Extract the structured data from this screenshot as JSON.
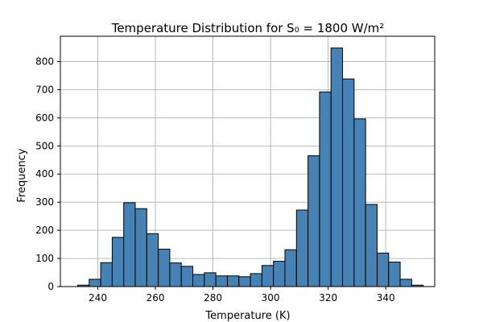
{
  "chart_data": {
    "type": "bar",
    "title": "Temperature Distribution for S₀ = 1800 W/m²",
    "xlabel": "Temperature (K)",
    "ylabel": "Frequency",
    "xlim": [
      227,
      357
    ],
    "ylim": [
      0,
      890
    ],
    "grid": true,
    "bar_color": "#4682b4",
    "edge_color": "#000000",
    "grid_color": "#b0b0b0",
    "bin_width": 4,
    "bins": [
      {
        "x0": 233,
        "x1": 237,
        "value": 5
      },
      {
        "x0": 237,
        "x1": 241,
        "value": 26
      },
      {
        "x0": 241,
        "x1": 245,
        "value": 85
      },
      {
        "x0": 245,
        "x1": 249,
        "value": 175
      },
      {
        "x0": 249,
        "x1": 253,
        "value": 298
      },
      {
        "x0": 253,
        "x1": 257,
        "value": 277
      },
      {
        "x0": 257,
        "x1": 261,
        "value": 188
      },
      {
        "x0": 261,
        "x1": 265,
        "value": 133
      },
      {
        "x0": 265,
        "x1": 269,
        "value": 84
      },
      {
        "x0": 269,
        "x1": 273,
        "value": 72
      },
      {
        "x0": 273,
        "x1": 277,
        "value": 43
      },
      {
        "x0": 277,
        "x1": 281,
        "value": 49
      },
      {
        "x0": 281,
        "x1": 285,
        "value": 38
      },
      {
        "x0": 285,
        "x1": 289,
        "value": 38
      },
      {
        "x0": 289,
        "x1": 293,
        "value": 35
      },
      {
        "x0": 293,
        "x1": 297,
        "value": 46
      },
      {
        "x0": 297,
        "x1": 301,
        "value": 75
      },
      {
        "x0": 301,
        "x1": 305,
        "value": 90
      },
      {
        "x0": 305,
        "x1": 309,
        "value": 131
      },
      {
        "x0": 309,
        "x1": 313,
        "value": 272
      },
      {
        "x0": 313,
        "x1": 317,
        "value": 465
      },
      {
        "x0": 317,
        "x1": 321,
        "value": 692
      },
      {
        "x0": 321,
        "x1": 325,
        "value": 848
      },
      {
        "x0": 325,
        "x1": 329,
        "value": 738
      },
      {
        "x0": 329,
        "x1": 333,
        "value": 596
      },
      {
        "x0": 333,
        "x1": 337,
        "value": 292
      },
      {
        "x0": 337,
        "x1": 341,
        "value": 119
      },
      {
        "x0": 341,
        "x1": 345,
        "value": 87
      },
      {
        "x0": 345,
        "x1": 349,
        "value": 26
      },
      {
        "x0": 349,
        "x1": 353,
        "value": 5
      }
    ],
    "x_ticks": [
      {
        "value": 240,
        "label": "240"
      },
      {
        "value": 260,
        "label": "260"
      },
      {
        "value": 280,
        "label": "280"
      },
      {
        "value": 300,
        "label": "300"
      },
      {
        "value": 320,
        "label": "320"
      },
      {
        "value": 340,
        "label": "340"
      }
    ],
    "y_ticks": [
      {
        "value": 0,
        "label": "0"
      },
      {
        "value": 100,
        "label": "100"
      },
      {
        "value": 200,
        "label": "200"
      },
      {
        "value": 300,
        "label": "300"
      },
      {
        "value": 400,
        "label": "400"
      },
      {
        "value": 500,
        "label": "500"
      },
      {
        "value": 600,
        "label": "600"
      },
      {
        "value": 700,
        "label": "700"
      },
      {
        "value": 800,
        "label": "800"
      }
    ]
  }
}
